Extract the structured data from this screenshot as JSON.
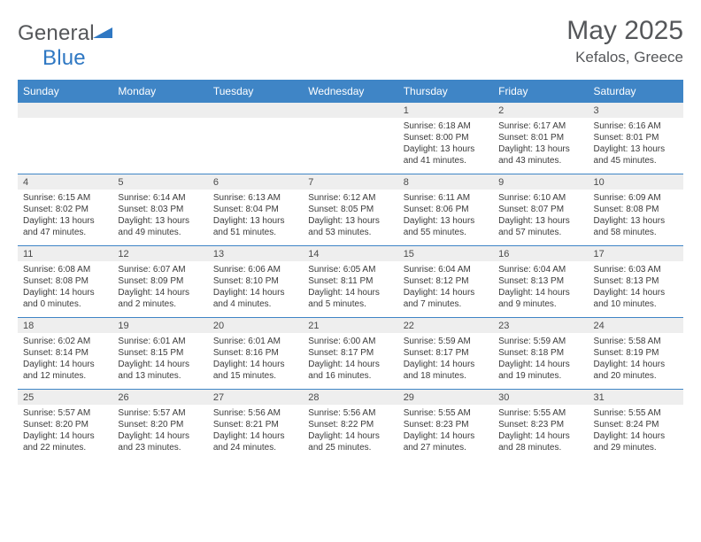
{
  "logo": {
    "text_left": "General",
    "text_right": "Blue",
    "left_color": "#55575a",
    "right_color": "#2f78c3",
    "triangle_color": "#2f78c3",
    "fontsize": 24
  },
  "title": "May 2025",
  "subtitle": "Kefalos, Greece",
  "title_fontsize": 30,
  "subtitle_fontsize": 17,
  "colors": {
    "header_bar": "#3f85c6",
    "header_text": "#ffffff",
    "row_border": "#3f85c6",
    "num_band_bg": "#eeeeee",
    "body_text": "#3b3b3b",
    "page_bg": "#ffffff"
  },
  "day_headers": [
    "Sunday",
    "Monday",
    "Tuesday",
    "Wednesday",
    "Thursday",
    "Friday",
    "Saturday"
  ],
  "day_header_fontsize": 12,
  "cell_fontsize": 10,
  "weeks": [
    [
      {
        "n": "",
        "sunrise": "",
        "sunset": "",
        "daylight": ""
      },
      {
        "n": "",
        "sunrise": "",
        "sunset": "",
        "daylight": ""
      },
      {
        "n": "",
        "sunrise": "",
        "sunset": "",
        "daylight": ""
      },
      {
        "n": "",
        "sunrise": "",
        "sunset": "",
        "daylight": ""
      },
      {
        "n": "1",
        "sunrise": "Sunrise: 6:18 AM",
        "sunset": "Sunset: 8:00 PM",
        "daylight": "Daylight: 13 hours\nand 41 minutes."
      },
      {
        "n": "2",
        "sunrise": "Sunrise: 6:17 AM",
        "sunset": "Sunset: 8:01 PM",
        "daylight": "Daylight: 13 hours\nand 43 minutes."
      },
      {
        "n": "3",
        "sunrise": "Sunrise: 6:16 AM",
        "sunset": "Sunset: 8:01 PM",
        "daylight": "Daylight: 13 hours\nand 45 minutes."
      }
    ],
    [
      {
        "n": "4",
        "sunrise": "Sunrise: 6:15 AM",
        "sunset": "Sunset: 8:02 PM",
        "daylight": "Daylight: 13 hours\nand 47 minutes."
      },
      {
        "n": "5",
        "sunrise": "Sunrise: 6:14 AM",
        "sunset": "Sunset: 8:03 PM",
        "daylight": "Daylight: 13 hours\nand 49 minutes."
      },
      {
        "n": "6",
        "sunrise": "Sunrise: 6:13 AM",
        "sunset": "Sunset: 8:04 PM",
        "daylight": "Daylight: 13 hours\nand 51 minutes."
      },
      {
        "n": "7",
        "sunrise": "Sunrise: 6:12 AM",
        "sunset": "Sunset: 8:05 PM",
        "daylight": "Daylight: 13 hours\nand 53 minutes."
      },
      {
        "n": "8",
        "sunrise": "Sunrise: 6:11 AM",
        "sunset": "Sunset: 8:06 PM",
        "daylight": "Daylight: 13 hours\nand 55 minutes."
      },
      {
        "n": "9",
        "sunrise": "Sunrise: 6:10 AM",
        "sunset": "Sunset: 8:07 PM",
        "daylight": "Daylight: 13 hours\nand 57 minutes."
      },
      {
        "n": "10",
        "sunrise": "Sunrise: 6:09 AM",
        "sunset": "Sunset: 8:08 PM",
        "daylight": "Daylight: 13 hours\nand 58 minutes."
      }
    ],
    [
      {
        "n": "11",
        "sunrise": "Sunrise: 6:08 AM",
        "sunset": "Sunset: 8:08 PM",
        "daylight": "Daylight: 14 hours\nand 0 minutes."
      },
      {
        "n": "12",
        "sunrise": "Sunrise: 6:07 AM",
        "sunset": "Sunset: 8:09 PM",
        "daylight": "Daylight: 14 hours\nand 2 minutes."
      },
      {
        "n": "13",
        "sunrise": "Sunrise: 6:06 AM",
        "sunset": "Sunset: 8:10 PM",
        "daylight": "Daylight: 14 hours\nand 4 minutes."
      },
      {
        "n": "14",
        "sunrise": "Sunrise: 6:05 AM",
        "sunset": "Sunset: 8:11 PM",
        "daylight": "Daylight: 14 hours\nand 5 minutes."
      },
      {
        "n": "15",
        "sunrise": "Sunrise: 6:04 AM",
        "sunset": "Sunset: 8:12 PM",
        "daylight": "Daylight: 14 hours\nand 7 minutes."
      },
      {
        "n": "16",
        "sunrise": "Sunrise: 6:04 AM",
        "sunset": "Sunset: 8:13 PM",
        "daylight": "Daylight: 14 hours\nand 9 minutes."
      },
      {
        "n": "17",
        "sunrise": "Sunrise: 6:03 AM",
        "sunset": "Sunset: 8:13 PM",
        "daylight": "Daylight: 14 hours\nand 10 minutes."
      }
    ],
    [
      {
        "n": "18",
        "sunrise": "Sunrise: 6:02 AM",
        "sunset": "Sunset: 8:14 PM",
        "daylight": "Daylight: 14 hours\nand 12 minutes."
      },
      {
        "n": "19",
        "sunrise": "Sunrise: 6:01 AM",
        "sunset": "Sunset: 8:15 PM",
        "daylight": "Daylight: 14 hours\nand 13 minutes."
      },
      {
        "n": "20",
        "sunrise": "Sunrise: 6:01 AM",
        "sunset": "Sunset: 8:16 PM",
        "daylight": "Daylight: 14 hours\nand 15 minutes."
      },
      {
        "n": "21",
        "sunrise": "Sunrise: 6:00 AM",
        "sunset": "Sunset: 8:17 PM",
        "daylight": "Daylight: 14 hours\nand 16 minutes."
      },
      {
        "n": "22",
        "sunrise": "Sunrise: 5:59 AM",
        "sunset": "Sunset: 8:17 PM",
        "daylight": "Daylight: 14 hours\nand 18 minutes."
      },
      {
        "n": "23",
        "sunrise": "Sunrise: 5:59 AM",
        "sunset": "Sunset: 8:18 PM",
        "daylight": "Daylight: 14 hours\nand 19 minutes."
      },
      {
        "n": "24",
        "sunrise": "Sunrise: 5:58 AM",
        "sunset": "Sunset: 8:19 PM",
        "daylight": "Daylight: 14 hours\nand 20 minutes."
      }
    ],
    [
      {
        "n": "25",
        "sunrise": "Sunrise: 5:57 AM",
        "sunset": "Sunset: 8:20 PM",
        "daylight": "Daylight: 14 hours\nand 22 minutes."
      },
      {
        "n": "26",
        "sunrise": "Sunrise: 5:57 AM",
        "sunset": "Sunset: 8:20 PM",
        "daylight": "Daylight: 14 hours\nand 23 minutes."
      },
      {
        "n": "27",
        "sunrise": "Sunrise: 5:56 AM",
        "sunset": "Sunset: 8:21 PM",
        "daylight": "Daylight: 14 hours\nand 24 minutes."
      },
      {
        "n": "28",
        "sunrise": "Sunrise: 5:56 AM",
        "sunset": "Sunset: 8:22 PM",
        "daylight": "Daylight: 14 hours\nand 25 minutes."
      },
      {
        "n": "29",
        "sunrise": "Sunrise: 5:55 AM",
        "sunset": "Sunset: 8:23 PM",
        "daylight": "Daylight: 14 hours\nand 27 minutes."
      },
      {
        "n": "30",
        "sunrise": "Sunrise: 5:55 AM",
        "sunset": "Sunset: 8:23 PM",
        "daylight": "Daylight: 14 hours\nand 28 minutes."
      },
      {
        "n": "31",
        "sunrise": "Sunrise: 5:55 AM",
        "sunset": "Sunset: 8:24 PM",
        "daylight": "Daylight: 14 hours\nand 29 minutes."
      }
    ]
  ]
}
